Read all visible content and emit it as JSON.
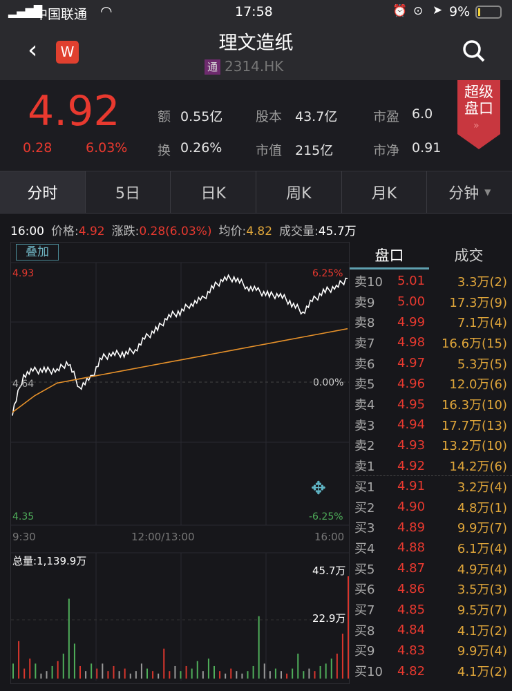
{
  "status_bar": {
    "carrier": "中国联通",
    "time": "17:58",
    "battery": "9%"
  },
  "nav": {
    "title": "理文造纸",
    "badge": "通",
    "code": "2314.HK",
    "app_icon_letter": "W",
    "icons": [
      "back-icon",
      "search-icon"
    ]
  },
  "quote": {
    "price": "4.92",
    "change": "0.28",
    "change_pct": "6.03%",
    "stats": [
      {
        "label": "额",
        "value": "0.55亿"
      },
      {
        "label": "股本",
        "value": "43.7亿"
      },
      {
        "label": "市盈",
        "value": "6.0"
      },
      {
        "label": "换",
        "value": "0.26%"
      },
      {
        "label": "市值",
        "value": "215亿"
      },
      {
        "label": "市净",
        "value": "0.91"
      }
    ],
    "super_board": "超级盘口"
  },
  "tabs": [
    {
      "label": "分时",
      "active": true
    },
    {
      "label": "5日"
    },
    {
      "label": "日K"
    },
    {
      "label": "周K"
    },
    {
      "label": "月K"
    },
    {
      "label": "分钟"
    }
  ],
  "info": {
    "time": "16:00",
    "price_label": "价格:",
    "price": "4.92",
    "change_label": "涨跌:",
    "change": "0.28(6.03%)",
    "avg_label": "均价:",
    "avg": "4.82",
    "vol_label": "成交量:",
    "vol": "45.7万"
  },
  "chart": {
    "overlay_button": "叠加",
    "y_max": "4.93",
    "y_mid": "4.64",
    "y_min": "4.35",
    "pct_max": "6.25%",
    "pct_mid": "0.00%",
    "pct_min": "-6.25%",
    "x_labels": [
      "9:30",
      "12:00/13:00",
      "16:00"
    ],
    "price_series": [
      4.6,
      4.69,
      4.7,
      4.7,
      4.7,
      4.72,
      4.66,
      4.68,
      4.73,
      4.74,
      4.74,
      4.75,
      4.78,
      4.8,
      4.83,
      4.84,
      4.86,
      4.87,
      4.9,
      4.92,
      4.92,
      4.9,
      4.89,
      4.88,
      4.88,
      4.86,
      4.84,
      4.87,
      4.89,
      4.9,
      4.92
    ],
    "avg_series": [
      4.6,
      4.64,
      4.67,
      4.68,
      4.69,
      4.7,
      4.71,
      4.72,
      4.73,
      4.74,
      4.75,
      4.76,
      4.77,
      4.78,
      4.79,
      4.8
    ],
    "total_volume": "总量:1,139.9万",
    "vol_max_label": "45.7万",
    "vol_mid_label": "22.9万",
    "volume_bars": [
      {
        "v": 6,
        "c": "g"
      },
      {
        "v": 15,
        "c": "r"
      },
      {
        "v": 4,
        "c": "r"
      },
      {
        "v": 8,
        "c": "r"
      },
      {
        "v": 6,
        "c": "g"
      },
      {
        "v": 2,
        "c": "w"
      },
      {
        "v": 3,
        "c": "w"
      },
      {
        "v": 5,
        "c": "g"
      },
      {
        "v": 7,
        "c": "r"
      },
      {
        "v": 10,
        "c": "g"
      },
      {
        "v": 32,
        "c": "g"
      },
      {
        "v": 14,
        "c": "g"
      },
      {
        "v": 5,
        "c": "r"
      },
      {
        "v": 3,
        "c": "w"
      },
      {
        "v": 6,
        "c": "g"
      },
      {
        "v": 4,
        "c": "r"
      },
      {
        "v": 6,
        "c": "w"
      },
      {
        "v": 3,
        "c": "r"
      },
      {
        "v": 5,
        "c": "r"
      },
      {
        "v": 3,
        "c": "w"
      },
      {
        "v": 4,
        "c": "r"
      },
      {
        "v": 2,
        "c": "w"
      },
      {
        "v": 3,
        "c": "w"
      },
      {
        "v": 6,
        "c": "w"
      },
      {
        "v": 4,
        "c": "g"
      },
      {
        "v": 3,
        "c": "r"
      },
      {
        "v": 2,
        "c": "w"
      },
      {
        "v": 12,
        "c": "r"
      },
      {
        "v": 3,
        "c": "r"
      },
      {
        "v": 5,
        "c": "w"
      },
      {
        "v": 3,
        "c": "g"
      },
      {
        "v": 5,
        "c": "r"
      },
      {
        "v": 4,
        "c": "g"
      },
      {
        "v": 7,
        "c": "g"
      },
      {
        "v": 3,
        "c": "w"
      },
      {
        "v": 8,
        "c": "g"
      },
      {
        "v": 5,
        "c": "g"
      },
      {
        "v": 3,
        "c": "r"
      },
      {
        "v": 2,
        "c": "w"
      },
      {
        "v": 4,
        "c": "r"
      },
      {
        "v": 3,
        "c": "w"
      },
      {
        "v": 2,
        "c": "w"
      },
      {
        "v": 3,
        "c": "g"
      },
      {
        "v": 5,
        "c": "g"
      },
      {
        "v": 25,
        "c": "g"
      },
      {
        "v": 6,
        "c": "w"
      },
      {
        "v": 3,
        "c": "w"
      },
      {
        "v": 4,
        "c": "g"
      },
      {
        "v": 3,
        "c": "w"
      },
      {
        "v": 2,
        "c": "r"
      },
      {
        "v": 4,
        "c": "g"
      },
      {
        "v": 10,
        "c": "g"
      },
      {
        "v": 3,
        "c": "g"
      },
      {
        "v": 4,
        "c": "w"
      },
      {
        "v": 3,
        "c": "r"
      },
      {
        "v": 5,
        "c": "g"
      },
      {
        "v": 6,
        "c": "g"
      },
      {
        "v": 8,
        "c": "g"
      },
      {
        "v": 10,
        "c": "r"
      },
      {
        "v": 18,
        "c": "r"
      },
      {
        "v": 41,
        "c": "r"
      }
    ],
    "colors": {
      "price": "#ffffff",
      "avg": "#e8922a",
      "up": "#d9362d",
      "down": "#4fae5a",
      "flat": "#999999"
    }
  },
  "orderbook": {
    "tabs": [
      "盘口",
      "成交"
    ],
    "asks": [
      {
        "side": "卖10",
        "price": "5.01",
        "vol": "3.3万(2)"
      },
      {
        "side": "卖9",
        "price": "5.00",
        "vol": "17.3万(9)"
      },
      {
        "side": "卖8",
        "price": "4.99",
        "vol": "7.1万(4)"
      },
      {
        "side": "卖7",
        "price": "4.98",
        "vol": "16.6万(15)"
      },
      {
        "side": "卖6",
        "price": "4.97",
        "vol": "5.3万(5)"
      },
      {
        "side": "卖5",
        "price": "4.96",
        "vol": "12.0万(6)"
      },
      {
        "side": "卖4",
        "price": "4.95",
        "vol": "16.3万(10)"
      },
      {
        "side": "卖3",
        "price": "4.94",
        "vol": "17.7万(13)"
      },
      {
        "side": "卖2",
        "price": "4.93",
        "vol": "13.2万(10)"
      },
      {
        "side": "卖1",
        "price": "4.92",
        "vol": "14.2万(6)"
      }
    ],
    "bids": [
      {
        "side": "买1",
        "price": "4.91",
        "vol": "3.2万(4)"
      },
      {
        "side": "买2",
        "price": "4.90",
        "vol": "4.8万(1)"
      },
      {
        "side": "买3",
        "price": "4.89",
        "vol": "9.9万(7)"
      },
      {
        "side": "买4",
        "price": "4.88",
        "vol": "6.1万(4)"
      },
      {
        "side": "买5",
        "price": "4.87",
        "vol": "4.9万(4)"
      },
      {
        "side": "买6",
        "price": "4.86",
        "vol": "3.5万(3)"
      },
      {
        "side": "买7",
        "price": "4.85",
        "vol": "9.5万(7)"
      },
      {
        "side": "买8",
        "price": "4.84",
        "vol": "4.1万(2)"
      },
      {
        "side": "买9",
        "price": "4.83",
        "vol": "9.9万(4)"
      },
      {
        "side": "买10",
        "price": "4.82",
        "vol": "4.1万(2)"
      }
    ]
  }
}
